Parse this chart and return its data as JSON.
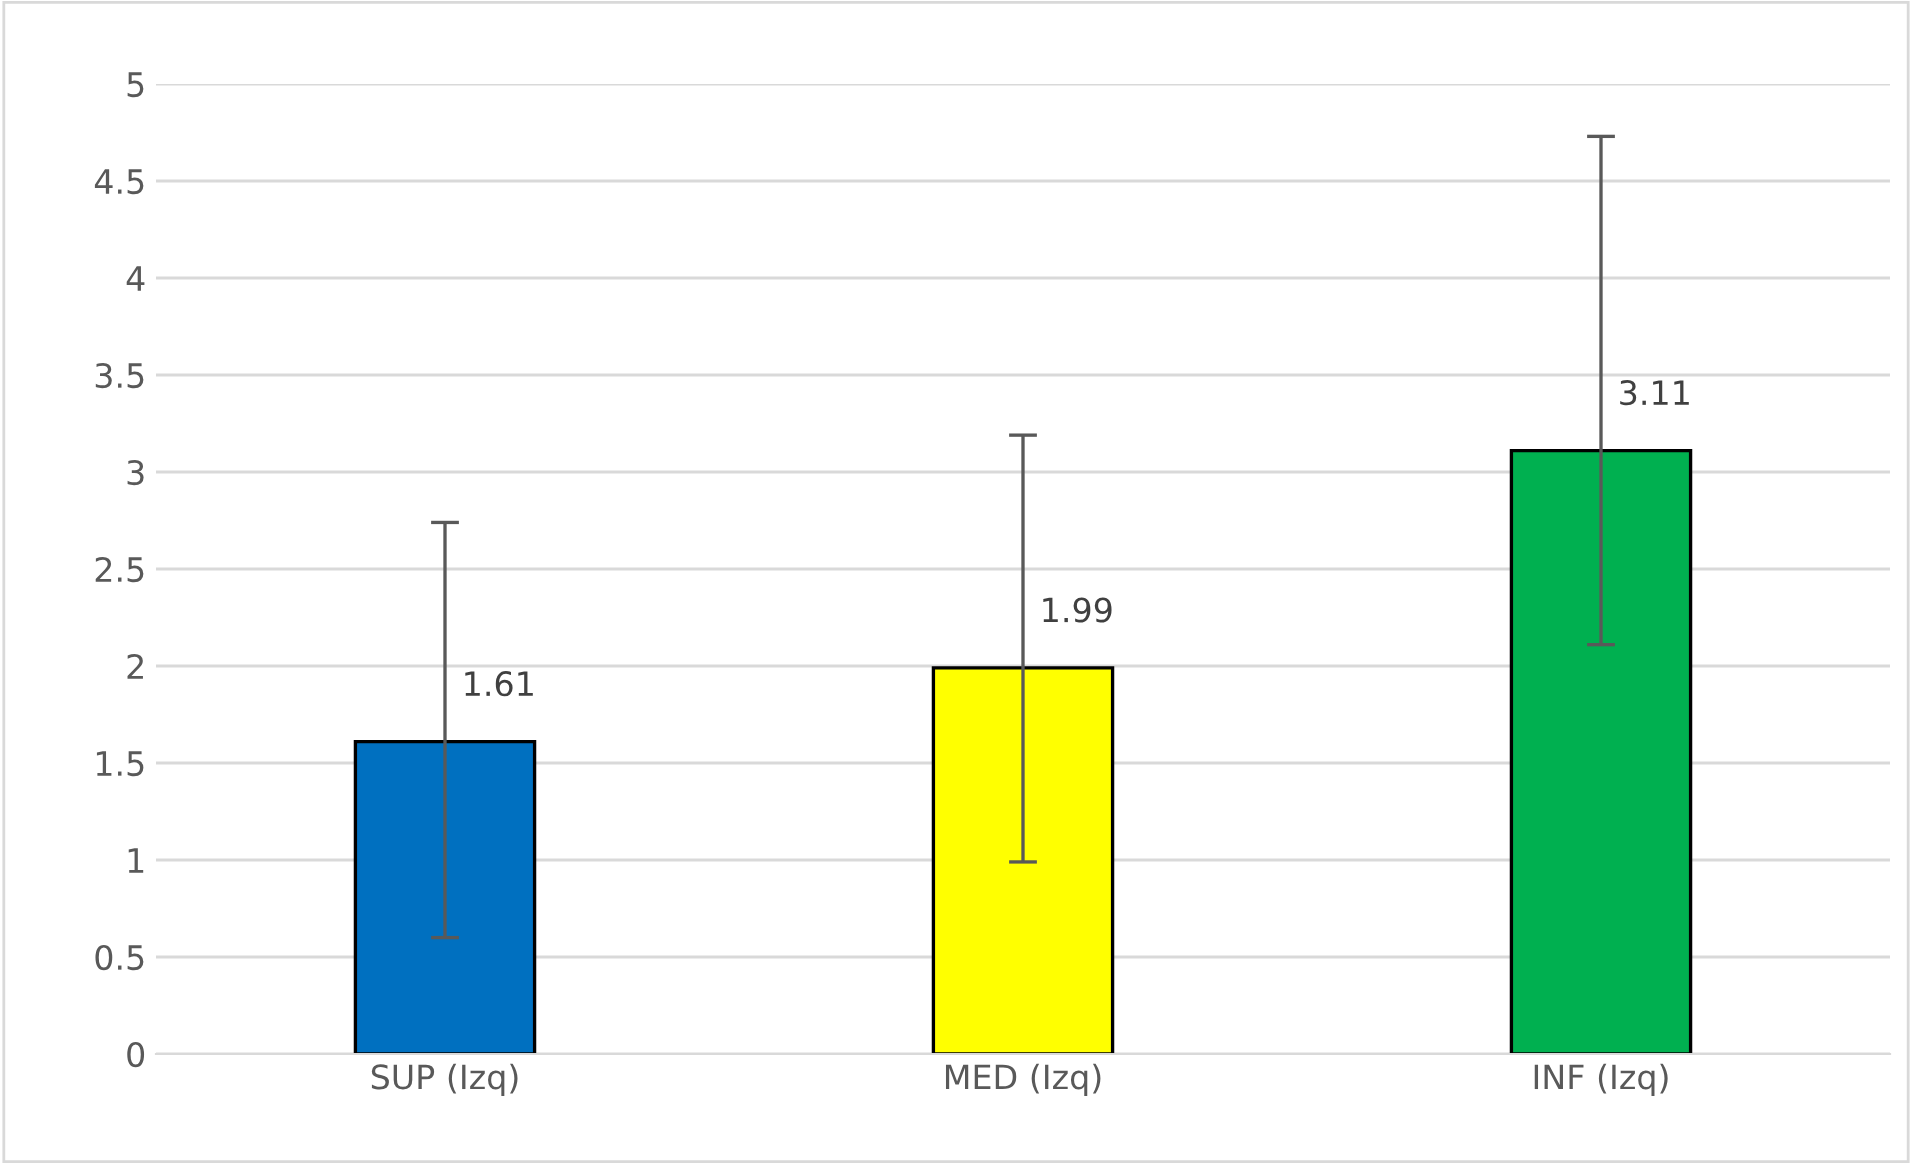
{
  "chart_data": {
    "type": "bar",
    "categories": [
      "SUP (Izq)",
      "MED (Izq)",
      "INF (Izq)"
    ],
    "values": [
      1.61,
      1.99,
      3.11
    ],
    "colors": [
      "#0070c0",
      "#ffff00",
      "#00b050"
    ],
    "errors": [
      [
        0.6,
        2.74
      ],
      [
        0.99,
        3.19
      ],
      [
        2.11,
        4.73
      ]
    ],
    "ylim": [
      0,
      5
    ],
    "yticks": [
      0,
      0.5,
      1,
      1.5,
      2,
      2.5,
      3,
      3.5,
      4,
      4.5,
      5
    ],
    "grid": "y",
    "data_labels": true
  }
}
